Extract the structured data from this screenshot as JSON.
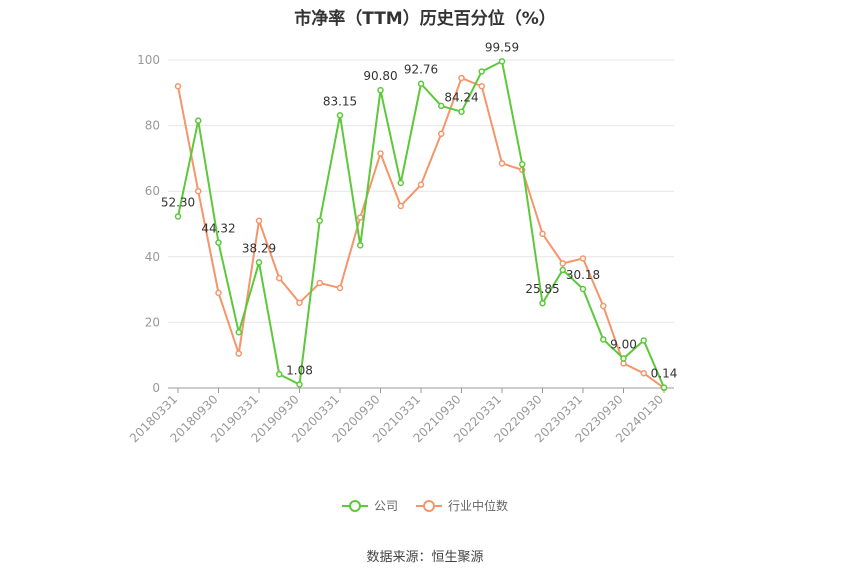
{
  "chart_data": {
    "type": "line",
    "title": "市净率（TTM）历史百分位（%）",
    "xlabel": "",
    "ylabel": "",
    "ylim": [
      0,
      100
    ],
    "yticks": [
      0,
      20,
      40,
      60,
      80,
      100
    ],
    "grid": true,
    "legend_position": "bottom",
    "x": [
      "20180331",
      "20180630",
      "20180930",
      "20181231",
      "20190331",
      "20190630",
      "20190930",
      "20191231",
      "20200331",
      "20200630",
      "20200930",
      "20201231",
      "20210331",
      "20210630",
      "20210930",
      "20211231",
      "20220331",
      "20220630",
      "20220930",
      "20221231",
      "20230331",
      "20230630",
      "20230930",
      "20231231",
      "20240130"
    ],
    "x_tick_labels": [
      "20180331",
      "20180930",
      "20190331",
      "20190930",
      "20200331",
      "20200930",
      "20210331",
      "20210930",
      "20220331",
      "20220930",
      "20230331",
      "20230930",
      "20240130"
    ],
    "series": [
      {
        "name": "公司",
        "color": "#5cc93a",
        "values": [
          52.3,
          81.5,
          44.32,
          17.0,
          38.29,
          4.2,
          1.08,
          51.0,
          83.15,
          43.5,
          90.8,
          62.5,
          92.76,
          86.0,
          84.24,
          96.5,
          99.59,
          68.2,
          25.85,
          36.0,
          30.18,
          14.8,
          9.0,
          14.5,
          0.14
        ],
        "labels": [
          "52.30",
          "",
          "44.32",
          "",
          "38.29",
          "",
          "1.08",
          "",
          "83.15",
          "",
          "90.80",
          "",
          "92.76",
          "",
          "84.24",
          "",
          "99.59",
          "",
          "25.85",
          "",
          "30.18",
          "",
          "9.00",
          "",
          "0.14"
        ]
      },
      {
        "name": "行业中位数",
        "color": "#f5956b",
        "values": [
          92.0,
          60.0,
          29.0,
          10.5,
          51.0,
          33.5,
          26.0,
          32.0,
          30.5,
          52.0,
          71.5,
          55.5,
          62.0,
          77.5,
          94.5,
          92.0,
          68.5,
          66.5,
          47.0,
          38.0,
          39.5,
          25.0,
          7.5,
          4.5,
          0.0
        ]
      }
    ]
  },
  "source": "数据来源：恒生聚源"
}
